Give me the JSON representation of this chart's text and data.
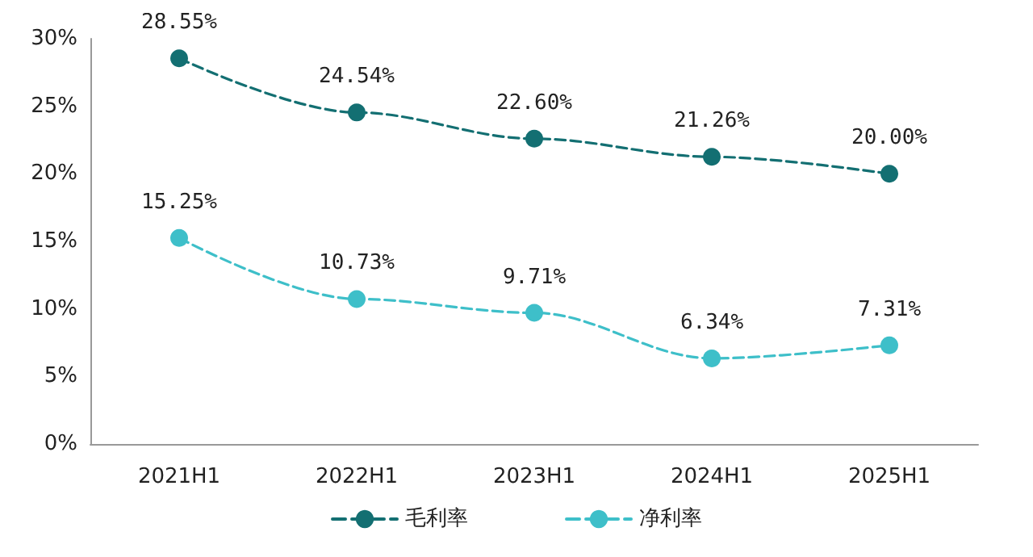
{
  "chart_data": {
    "type": "line",
    "categories": [
      "2021H1",
      "2022H1",
      "2023H1",
      "2024H1",
      "2025H1"
    ],
    "series": [
      {
        "name": "毛利率",
        "color": "#136f72",
        "values": [
          28.55,
          24.54,
          22.6,
          21.26,
          20.0
        ],
        "value_labels": [
          "28.55%",
          "24.54%",
          "22.60%",
          "21.26%",
          "20.00%"
        ]
      },
      {
        "name": "净利率",
        "color": "#3ebfc9",
        "values": [
          15.25,
          10.73,
          9.71,
          6.34,
          7.31
        ],
        "value_labels": [
          "15.25%",
          "10.73%",
          "9.71%",
          "6.34%",
          "7.31%"
        ]
      }
    ],
    "ylim": [
      0,
      30
    ],
    "yticks": [
      {
        "value": 0,
        "label": "0%"
      },
      {
        "value": 5,
        "label": "5%"
      },
      {
        "value": 10,
        "label": "10%"
      },
      {
        "value": 15,
        "label": "15%"
      },
      {
        "value": 20,
        "label": "20%"
      },
      {
        "value": 25,
        "label": "25%"
      },
      {
        "value": 30,
        "label": "30%"
      }
    ],
    "grid": false,
    "legend": "bottom",
    "marker": "circle",
    "line_style": "dashed"
  }
}
